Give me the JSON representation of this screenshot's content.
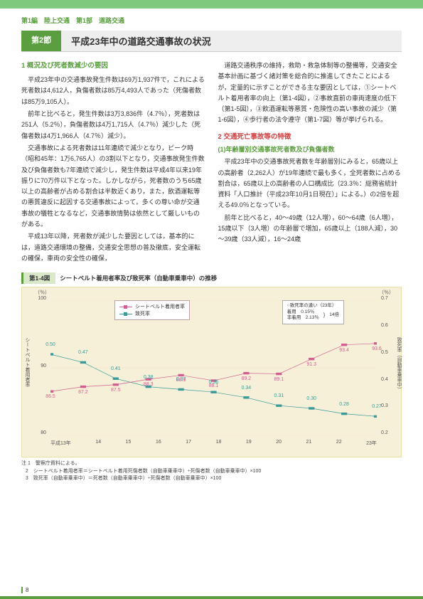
{
  "breadcrumb": "第1編　陸上交通　第1部　道路交通",
  "section": {
    "label": "第2節",
    "title": "平成23年中の道路交通事故の状況"
  },
  "left": {
    "subhead": "1 概況及び死者数減少の要因",
    "p1": "平成23年中の交通事故発生件数は69万1,937件で，これによる死者数は4,612人，負傷者数は85万4,493人であった（死傷者数は85万9,105人）。",
    "p2": "前年と比べると，発生件数は3万3,836件（4.7％），死者数は251人（5.2％），負傷者数は4万1,715人（4.7％）減少した（死傷者数は4万1,966人（4.7％）減少）。",
    "p3": "交通事故による死者数は11年連続で減少となり，ピーク時（昭和45年：1万6,765人）の3割以下となり，交通事故発生件数及び負傷者数も7年連続で減少し，発生件数は平成4年以来19年振りに70万件以下となった。しかしながら，死者数のうち65歳以上の高齢者が占める割合は半数近くあり，また，飲酒運転等の悪質違反に起因する交通事故によって，多くの尊い命が交通事故の犠牲となるなど，交通事故情勢は依然として厳しいものがある。",
    "p4": "平成13年以降，死者数が減少した要因としては，基本的には，道路交通環境の整備，交通安全思想の普及徹底，安全運転の確保，車両の安全性の確保，"
  },
  "right": {
    "p1": "道路交通秩序の維持，救助・救急体制等の整備等，交通安全基本計画に基づく諸対策を総合的に推進してきたことによるが，定量的に示すことができる主な要因としては，①シートベルト着用者率の向上（第1-4図），②事故直前の車両速度の低下（第1-5図），③飲酒運転等悪質・危険性の高い事故の減少（第1-6図），④歩行者の法令遵守（第1-7図）等が挙げられる。",
    "subhead_red": "2 交通死亡事故等の特徴",
    "subhead_green": "(1)年齢層別交通事故死者数及び負傷者数",
    "p2": "平成23年中の交通事故死者数を年齢層別にみると，65歳以上の高齢者（2,262人）が19年連続で最も多く，全死者数に占める割合は，65歳以上の高齢者の人口構成比（23.3％：総務省統計資料「人口推計（平成23年10月1日現在）」による。）の2倍を超える49.0％となっている。",
    "p3": "前年と比べると，40～49歳（12人増），60～64歳（6人増），15歳以下（3人増）の年齢層で増加，65歳以上（188人減），30～39歳（33人減），16～24歳"
  },
  "chart": {
    "caption_tab": "第1-4図",
    "caption_text": "シートベルト着用者率及び致死率（自動車乗車中）の推移",
    "y_left_unit": "（％）",
    "y_right_unit": "（％）",
    "y_left_title": "シートベルト着用者率",
    "y_right_title": "致死率（自動車乗車中）",
    "y_left_ticks": [
      "100",
      "90",
      "80"
    ],
    "y_right_ticks": [
      "0.7",
      "0.6",
      "0.5",
      "0.4",
      "0.3",
      "0.2"
    ],
    "y_left_lim": [
      80,
      100
    ],
    "y_right_lim": [
      0.2,
      0.7
    ],
    "x_labels": [
      "平成13年",
      "14",
      "15",
      "16",
      "17",
      "18",
      "19",
      "20",
      "21",
      "22",
      "23年"
    ],
    "series_pink": {
      "label": "シートベルト着用者率",
      "color": "#d06090",
      "marker": "square",
      "values": [
        86.5,
        87.2,
        87.5,
        88.3,
        88.9,
        88.1,
        89.2,
        89.1,
        91.3,
        93.4,
        93.6
      ]
    },
    "series_teal": {
      "label": "致死率",
      "color": "#3a9a9a",
      "marker": "square",
      "values": [
        0.5,
        0.47,
        0.41,
        0.38,
        0.37,
        0.36,
        0.34,
        0.31,
        0.3,
        0.28,
        0.27
      ]
    },
    "info_box": {
      "line1": "○致死率の違い（23年）",
      "line2": "着用　0.15％",
      "line3": "非着用　2.13％",
      "line4": "14倍"
    },
    "background_color": "#f7f0d8",
    "grid_color": "#e0d8b0"
  },
  "notes": {
    "prefix": "注",
    "n1": "1　警察庁資料による。",
    "n2": "2　シートベルト着用者率＝シートベルト着用死傷者数（自動車乗車中）÷死傷者数（自動車乗車中）×100",
    "n3": "3　致死率（自動車乗車中）＝死者数（自動車乗車中）÷死傷者数（自動車乗車中）×100"
  },
  "page_number": "8"
}
